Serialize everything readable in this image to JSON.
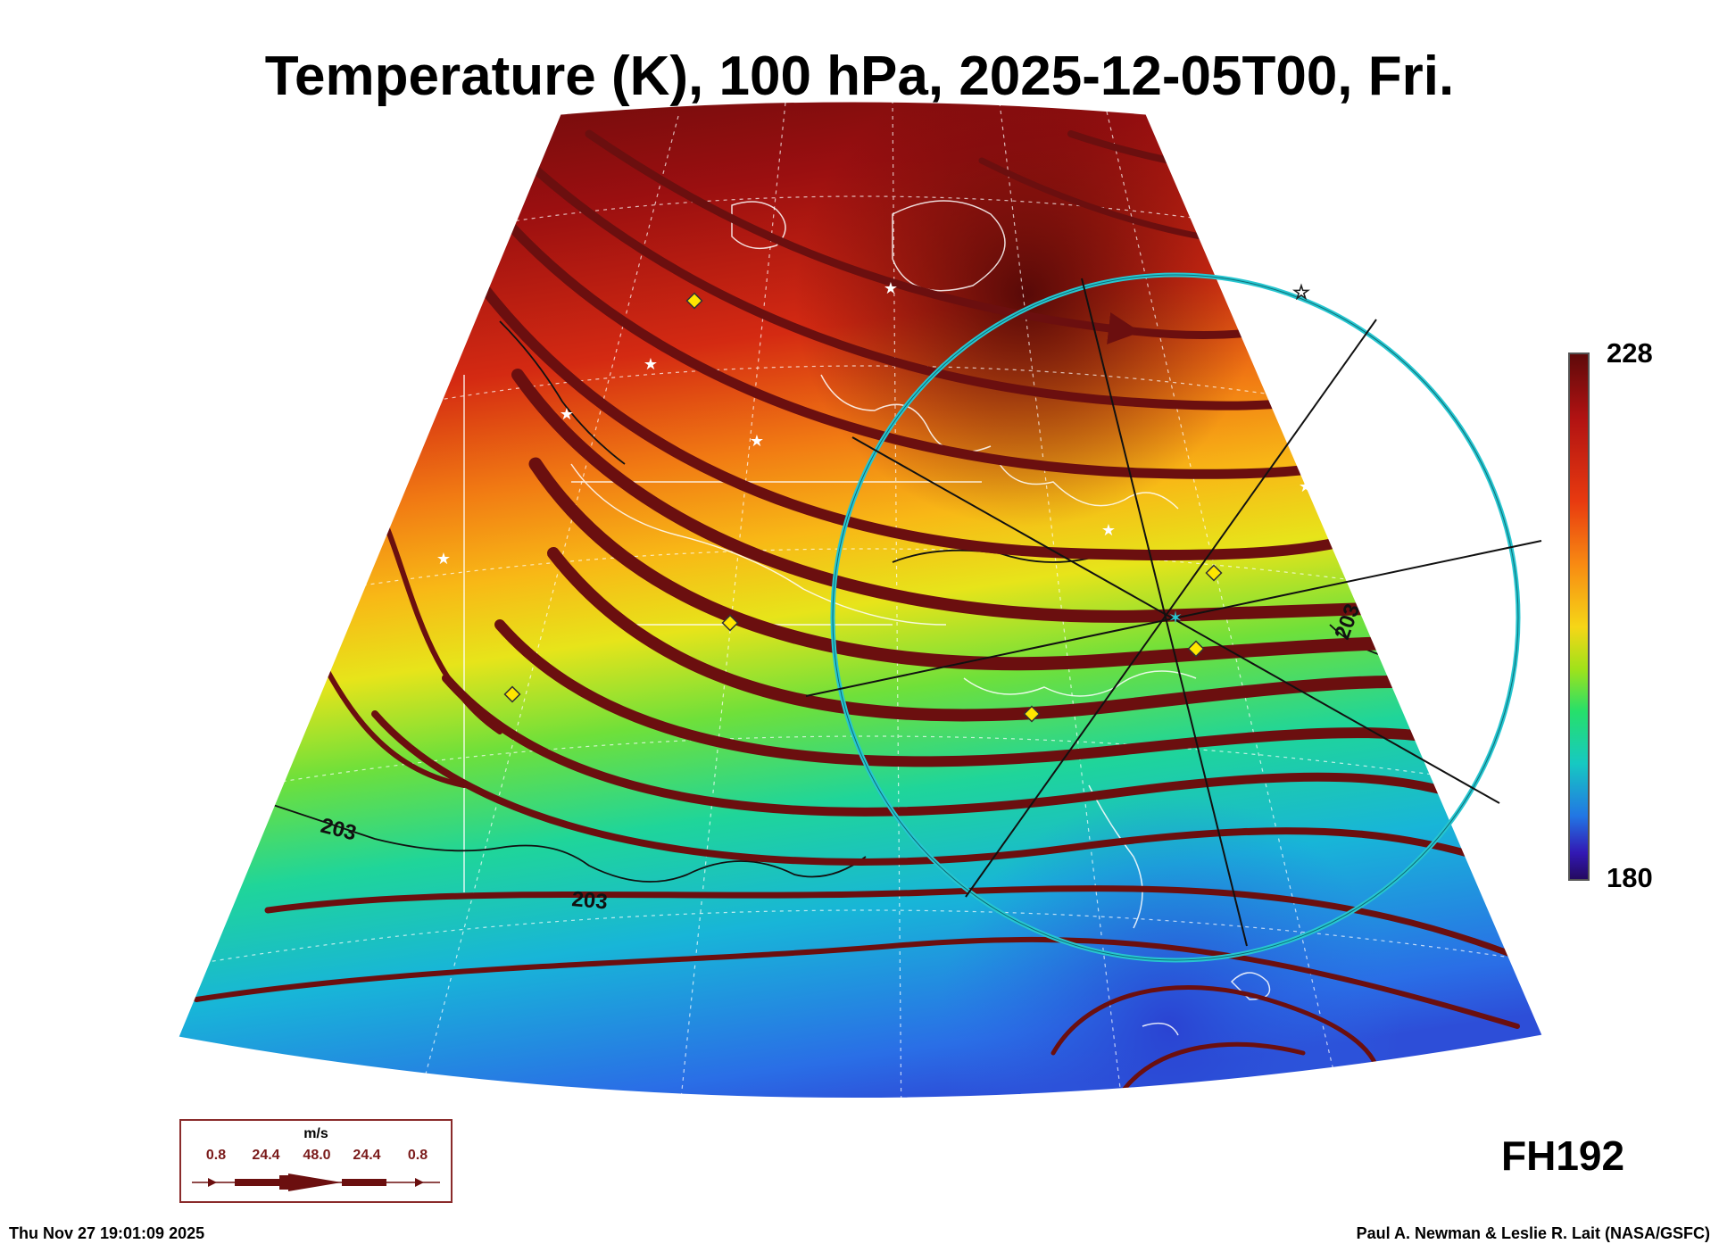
{
  "title": "Temperature (K), 100 hPa, 2025-12-05T00, Fri.",
  "colorbar": {
    "max": "228",
    "min": "180",
    "colors": [
      "#5e0a0a",
      "#b01212",
      "#e83a10",
      "#f88a12",
      "#f6d617",
      "#a0e21a",
      "#26e06a",
      "#16c9c2",
      "#2276e4",
      "#3218b4",
      "#240a60"
    ]
  },
  "contours": {
    "label": "203"
  },
  "forecast_hour": "FH192",
  "wind_legend": {
    "units": "m/s",
    "values": [
      "0.8",
      "24.4",
      "48.0",
      "24.4",
      "0.8"
    ]
  },
  "footer": {
    "timestamp": "Thu Nov 27 19:01:09 2025",
    "credit": "Paul A. Newman & Leslie R. Lait (NASA/GSFC)"
  },
  "colors": {
    "streamline": "#6b0f0f",
    "overlay_circle": "#27c6d0",
    "marker": "#ffe600"
  }
}
